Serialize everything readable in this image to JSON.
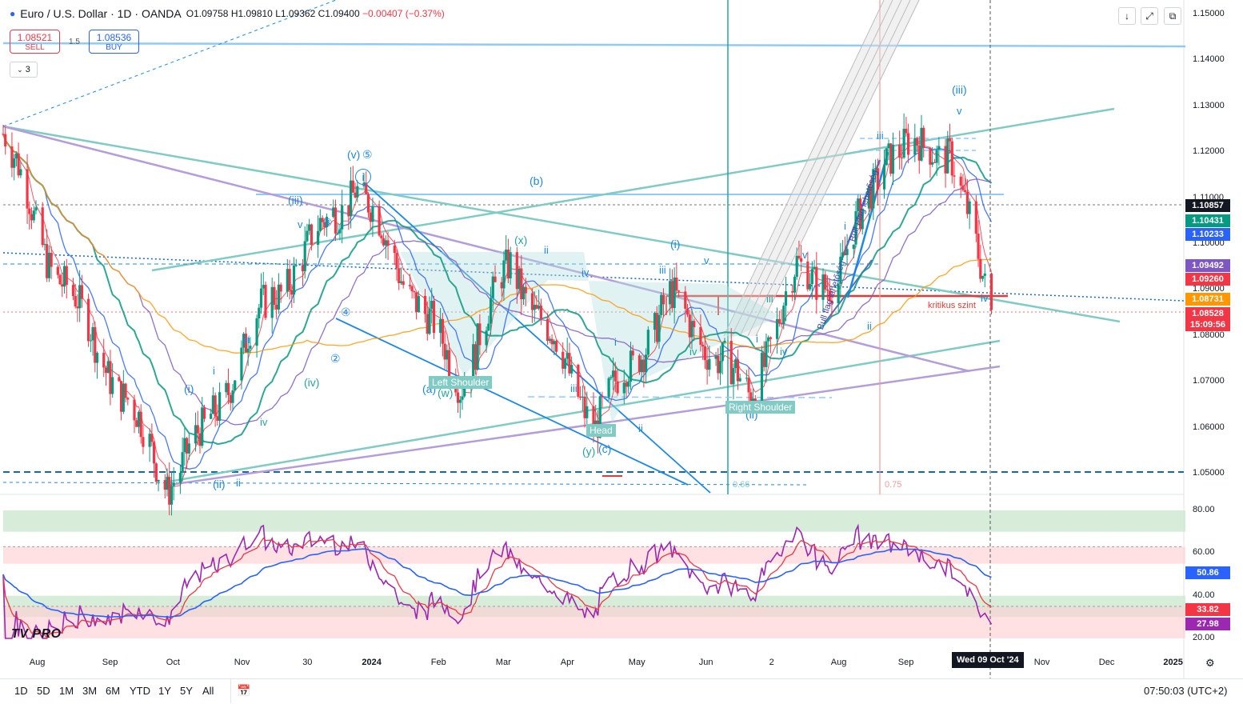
{
  "header": {
    "symbol": "Euro / U.S. Dollar · 1D · OANDA",
    "open": "O1.09758",
    "high": "H1.09810",
    "low": "L1.09362",
    "close": "C1.09400",
    "change": "−0.00407 (−0.37%)"
  },
  "trade": {
    "sell_price": "1.08521",
    "sell_label": "SELL",
    "spread": "1.5",
    "buy_price": "1.08536",
    "buy_label": "BUY"
  },
  "indicators_count": "3",
  "price_axis": {
    "labels": [
      "1.15000",
      "1.14000",
      "1.13000",
      "1.12000",
      "1.11000",
      "1.10000",
      "1.09000",
      "1.08000",
      "1.07000",
      "1.06000",
      "1.05000"
    ],
    "badges": [
      {
        "text": "1.10857",
        "color": "#131722"
      },
      {
        "text": "1.10431",
        "color": "#089981"
      },
      {
        "text": "1.10233",
        "color": "#2962ff"
      },
      {
        "text": "1.09492",
        "color": "#7e57c2"
      },
      {
        "text": "1.09260",
        "color": "#f23645"
      },
      {
        "text": "1.08731",
        "color": "#ff9800"
      },
      {
        "text": "1.08528",
        "color": "#f23645"
      },
      {
        "text": "15:09:56",
        "color": "#f23645"
      }
    ]
  },
  "rsi_axis": {
    "labels": [
      "80.00",
      "60.00",
      "40.00",
      "20.00"
    ],
    "badges": [
      {
        "text": "50.86",
        "color": "#2962ff"
      },
      {
        "text": "33.82",
        "color": "#f23645"
      },
      {
        "text": "27.98",
        "color": "#9c27b0"
      }
    ]
  },
  "time_axis": {
    "labels": [
      "Aug",
      "Sep",
      "Oct",
      "Nov",
      "30",
      "2024",
      "Feb",
      "Mar",
      "Apr",
      "May",
      "Jun",
      "2",
      "Aug",
      "Sep",
      "Nov",
      "Dec",
      "2025"
    ],
    "crosshair_label": "Wed 09 Oct '24"
  },
  "annotations": {
    "wave_labels": [
      "(i)",
      "(ii)",
      "(iii)",
      "(iv)",
      "(v)",
      "i",
      "ii",
      "iii",
      "iv",
      "v",
      "(a)",
      "(b)",
      "(c)",
      "(w)",
      "(x)",
      "(y)",
      "②",
      "③",
      "④",
      "⑤"
    ],
    "pattern_labels": [
      "Left Shoulder",
      "Head",
      "Right Shoulder"
    ],
    "texts": [
      "Bull Flag lehetőség",
      "Bull flag lehetőség",
      "kritikus szint",
      "0.66",
      "0.75"
    ]
  },
  "bottom_bar": {
    "timeframes": [
      "1D",
      "5D",
      "1M",
      "3M",
      "6M",
      "YTD",
      "1Y",
      "5Y",
      "All"
    ],
    "clock": "07:50:03 (UTC+2)"
  },
  "logo": "TV PRO",
  "chart_data": {
    "type": "candlestick",
    "symbol": "EURUSD",
    "timeframe": "1D",
    "ylim": [
      1.045,
      1.155
    ],
    "x_range": [
      "2023-07-20",
      "2025-01-10"
    ],
    "approx_close_path": [
      {
        "date": "2023-07-20",
        "value": 1.124
      },
      {
        "date": "2023-08-10",
        "value": 1.097
      },
      {
        "date": "2023-09-01",
        "value": 1.078
      },
      {
        "date": "2023-10-03",
        "value": 1.048
      },
      {
        "date": "2023-10-20",
        "value": 1.059
      },
      {
        "date": "2023-11-15",
        "value": 1.085
      },
      {
        "date": "2023-12-28",
        "value": 1.113
      },
      {
        "date": "2024-02-14",
        "value": 1.07
      },
      {
        "date": "2024-03-08",
        "value": 1.096
      },
      {
        "date": "2024-04-16",
        "value": 1.061
      },
      {
        "date": "2024-05-20",
        "value": 1.088
      },
      {
        "date": "2024-06-25",
        "value": 1.067
      },
      {
        "date": "2024-07-17",
        "value": 1.094
      },
      {
        "date": "2024-08-05",
        "value": 1.092
      },
      {
        "date": "2024-08-26",
        "value": 1.12
      },
      {
        "date": "2024-09-25",
        "value": 1.121
      },
      {
        "date": "2024-10-09",
        "value": 1.094
      },
      {
        "date": "2024-10-14",
        "value": 1.0853
      }
    ],
    "last_price": 1.08528,
    "key_levels": [
      {
        "name": "horizontal resistance",
        "value": 1.143
      },
      {
        "name": "horizontal",
        "value": 1.11
      },
      {
        "name": "kritikus szint",
        "value": 1.0873
      },
      {
        "name": "dashed support",
        "value": 1.05
      }
    ],
    "moving_averages_last": [
      {
        "color": "#089981",
        "value": 1.10431
      },
      {
        "color": "#2962ff",
        "value": 1.10233
      },
      {
        "color": "#7e57c2",
        "value": 1.09492
      },
      {
        "color": "#f23645",
        "value": 1.0926
      },
      {
        "color": "#ff9800",
        "value": 1.08731
      }
    ],
    "rsi": {
      "ylim": [
        18,
        82
      ],
      "bands": [
        [
          70,
          80
        ],
        [
          30,
          40
        ]
      ],
      "last": {
        "rsi": 27.98,
        "ma_fast": 33.82,
        "ma_slow": 50.86
      }
    }
  }
}
